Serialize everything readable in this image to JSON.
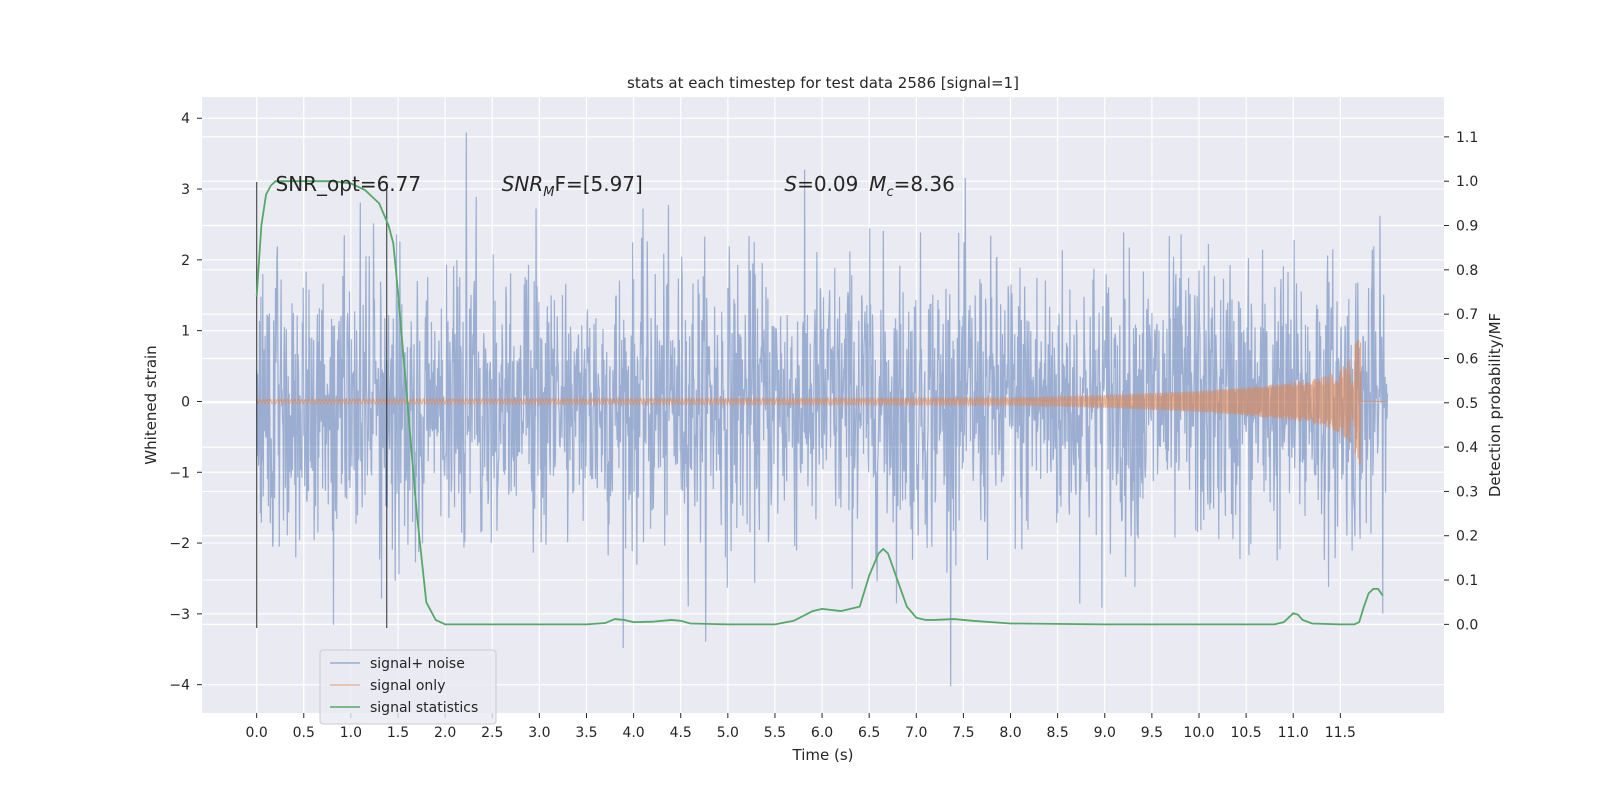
{
  "chart_data": {
    "type": "line",
    "title": "stats at each timestep for test data 2586 [signal=1]",
    "xlabel": "Time (s)",
    "ylabel_left": "Whitened strain",
    "ylabel_right": "Detection probability/MF",
    "xlim": [
      -0.58,
      12.6
    ],
    "ylim_left": [
      -4.4,
      4.3
    ],
    "ylim_right": [
      -0.2,
      1.19
    ],
    "x_ticks": [
      "0.0",
      "0.5",
      "1.0",
      "1.5",
      "2.0",
      "2.5",
      "3.0",
      "3.5",
      "4.0",
      "4.5",
      "5.0",
      "5.5",
      "6.0",
      "6.5",
      "7.0",
      "7.5",
      "8.0",
      "8.5",
      "9.0",
      "9.5",
      "10.0",
      "10.5",
      "11.0",
      "11.5"
    ],
    "y_ticks_left": [
      "4",
      "3",
      "2",
      "1",
      "0",
      "−1",
      "−2",
      "−3",
      "−4"
    ],
    "y_ticks_right": [
      "1.1",
      "1.0",
      "0.9",
      "0.8",
      "0.7",
      "0.6",
      "0.5",
      "0.4",
      "0.3",
      "0.2",
      "0.1",
      "0.0"
    ],
    "grid": true,
    "background": "#eaeaf2",
    "legend_position": "lower-left",
    "series": [
      {
        "name": "signal+ noise",
        "color": "#4c72b0",
        "axis": "left",
        "x_range": [
          0.0,
          12.0
        ],
        "typical_range": [
          -2.3,
          2.3
        ],
        "max": 3.95,
        "min": -4.1
      },
      {
        "name": "signal only",
        "color": "#dd8452",
        "axis": "left",
        "x_range": [
          0.0,
          12.0
        ],
        "envelope_x": [
          0.0,
          8.0,
          9.0,
          10.0,
          10.5,
          11.0,
          11.3,
          11.5,
          11.6,
          11.65,
          11.7
        ],
        "envelope_amp": [
          0.03,
          0.05,
          0.09,
          0.15,
          0.2,
          0.27,
          0.34,
          0.45,
          0.6,
          0.8,
          0.9
        ]
      },
      {
        "name": "signal statistics",
        "color": "#55a868",
        "axis": "right",
        "x": [
          0.0,
          0.05,
          0.1,
          0.15,
          0.2,
          0.3,
          0.5,
          0.8,
          1.0,
          1.15,
          1.3,
          1.4,
          1.45,
          1.5,
          1.6,
          1.7,
          1.8,
          1.9,
          2.0,
          2.2,
          3.5,
          3.7,
          3.8,
          3.9,
          4.0,
          4.2,
          4.4,
          4.5,
          4.6,
          5.0,
          5.5,
          5.7,
          5.9,
          6.0,
          6.2,
          6.4,
          6.5,
          6.6,
          6.65,
          6.7,
          6.8,
          6.9,
          7.0,
          7.1,
          7.2,
          7.4,
          7.6,
          8.0,
          9.0,
          10.0,
          10.8,
          10.9,
          11.0,
          11.05,
          11.1,
          11.2,
          11.5,
          11.65,
          11.7,
          11.75,
          11.8,
          11.85,
          11.9,
          11.95
        ],
        "y": [
          0.74,
          0.9,
          0.97,
          0.99,
          1.0,
          1.0,
          1.0,
          1.0,
          0.995,
          0.98,
          0.95,
          0.9,
          0.86,
          0.75,
          0.5,
          0.25,
          0.05,
          0.01,
          0.0,
          0.0,
          0.0,
          0.003,
          0.012,
          0.01,
          0.005,
          0.006,
          0.01,
          0.008,
          0.002,
          0.0,
          0.0,
          0.008,
          0.03,
          0.035,
          0.03,
          0.04,
          0.11,
          0.16,
          0.17,
          0.16,
          0.1,
          0.04,
          0.015,
          0.01,
          0.01,
          0.012,
          0.008,
          0.002,
          0.0,
          0.0,
          0.0,
          0.005,
          0.025,
          0.022,
          0.01,
          0.002,
          0.0,
          0.0,
          0.005,
          0.04,
          0.07,
          0.08,
          0.08,
          0.065
        ]
      }
    ],
    "vlines": [
      0.0,
      1.38
    ],
    "annotations": [
      {
        "text": "SNR_opt=6.77",
        "x": 0.2,
        "y": 3.0
      },
      {
        "text": "SNR",
        "sub": "M",
        "rest": "F=[5.97]",
        "x": 2.6,
        "y": 3.0
      },
      {
        "text": "S=0.09",
        "x": 5.6,
        "y": 3.0
      },
      {
        "text": "M",
        "sub": "c",
        "rest": "=8.36",
        "x": 6.5,
        "y": 3.0
      }
    ]
  }
}
